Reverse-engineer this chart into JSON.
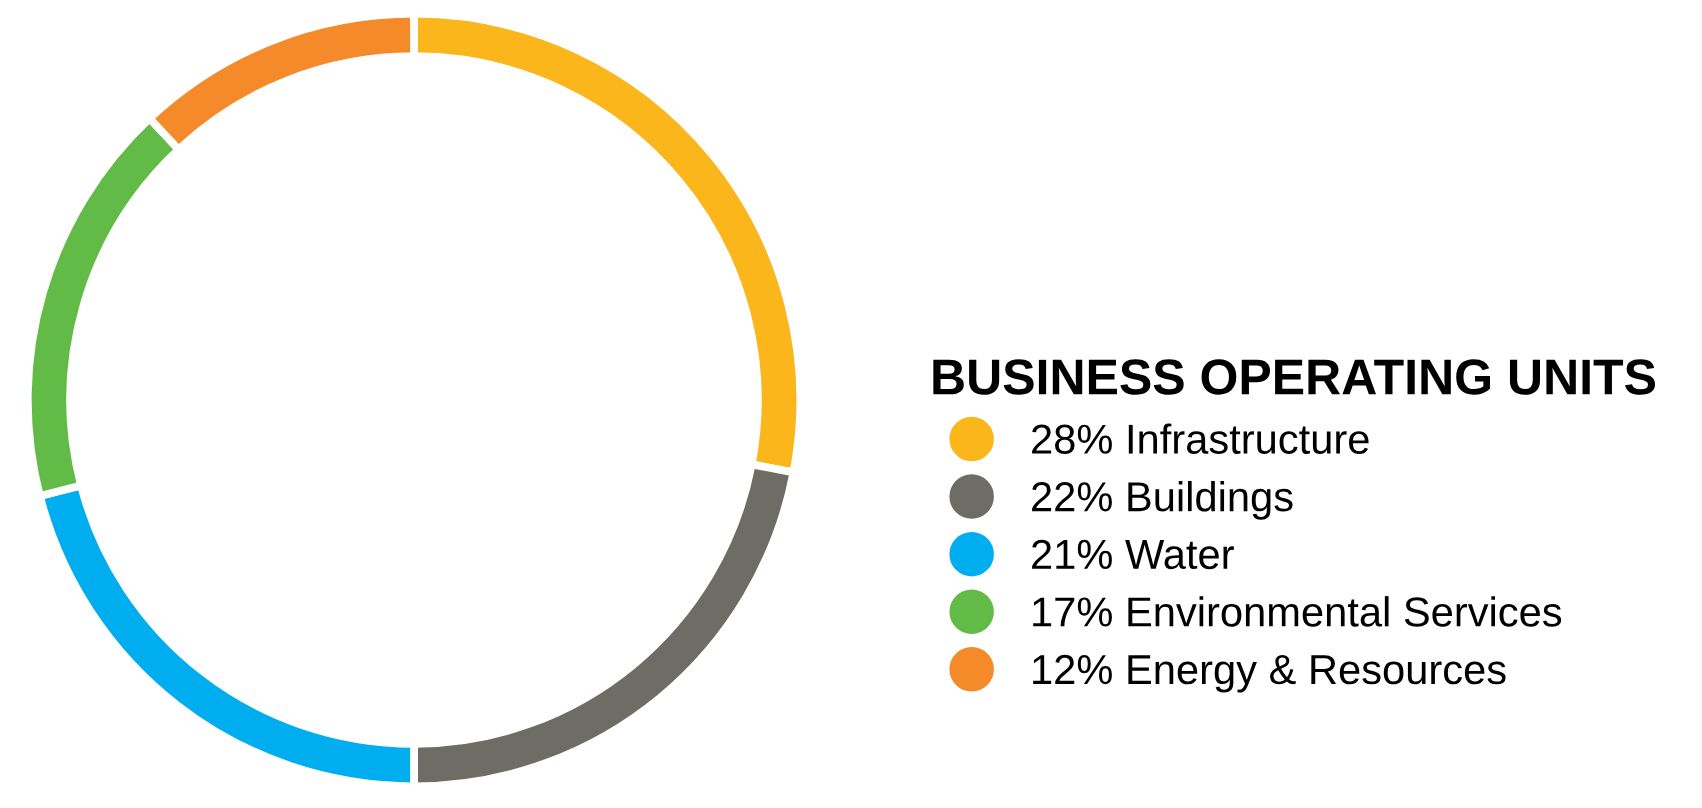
{
  "chart_data": {
    "type": "donut",
    "legend_title": "BUSINESS OPERATING UNITS",
    "categories": [
      "28% Infrastructure",
      "22% Buildings",
      "21% Water",
      "17% Environmental Services",
      "12% Energy & Resources"
    ],
    "values": [
      28,
      22,
      21,
      17,
      12
    ],
    "colors": [
      "#fbb61b",
      "#6d6d65",
      "#00aeef",
      "#62bb46",
      "#f58a2a"
    ],
    "legend": "right",
    "marker": "circle"
  }
}
